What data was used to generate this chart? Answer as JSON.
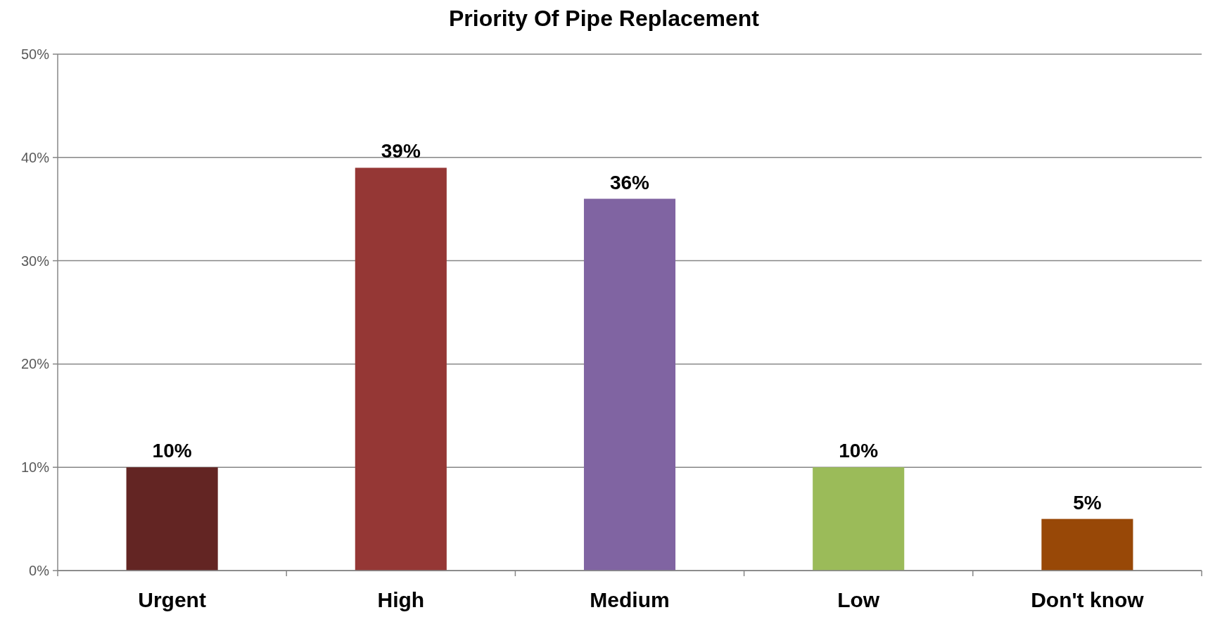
{
  "chart_data": {
    "type": "bar",
    "title": "Priority Of Pipe Replacement",
    "categories": [
      "Urgent",
      "High",
      "Medium",
      "Low",
      "Don't know"
    ],
    "values": [
      10,
      39,
      36,
      10,
      5
    ],
    "colors": [
      "#632523",
      "#953735",
      "#8064a2",
      "#9bbb59",
      "#984807"
    ],
    "value_labels": [
      "10%",
      "39%",
      "36%",
      "10%",
      "5%"
    ],
    "ylim": [
      0,
      50
    ],
    "yticks": [
      {
        "value": 0,
        "label": "0%"
      },
      {
        "value": 10,
        "label": "10%"
      },
      {
        "value": 20,
        "label": "20%"
      },
      {
        "value": 30,
        "label": "30%"
      },
      {
        "value": 40,
        "label": "40%"
      },
      {
        "value": 50,
        "label": "50%"
      }
    ],
    "grid": "y"
  }
}
